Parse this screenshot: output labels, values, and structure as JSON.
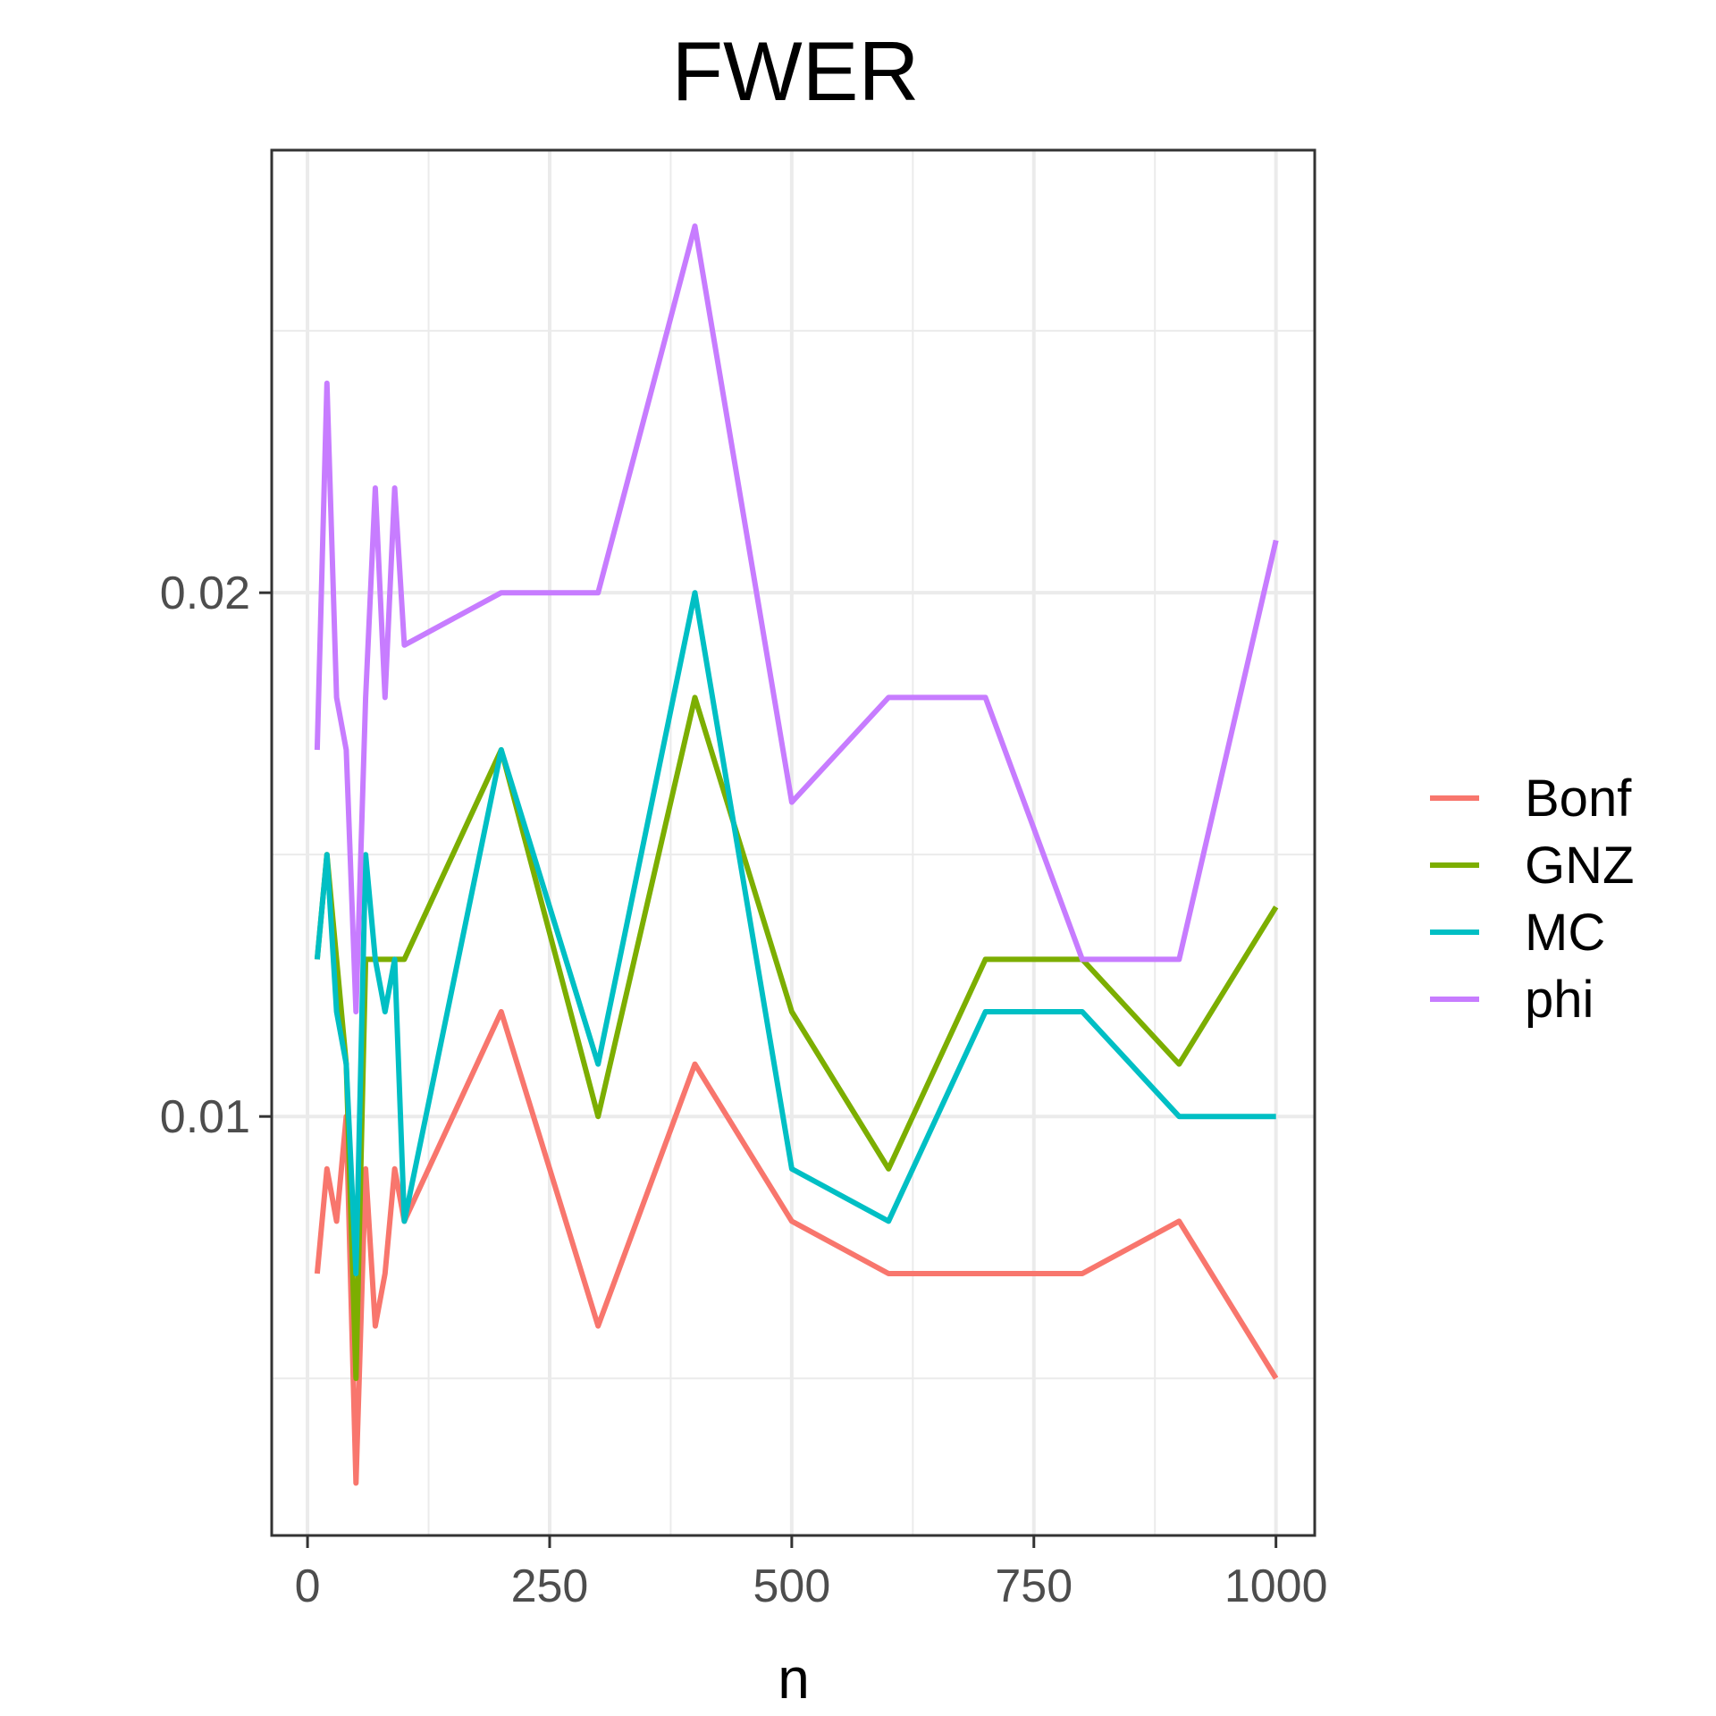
{
  "chart_data": {
    "type": "line",
    "title": "FWER",
    "xlabel": "n",
    "ylabel": "",
    "xlim": [
      -37,
      1040
    ],
    "ylim": [
      0.002,
      0.02845
    ],
    "x_ticks": [
      0,
      250,
      500,
      750,
      1000
    ],
    "y_ticks": [
      0.01,
      0.02
    ],
    "x_tick_labels": [
      "0",
      "250",
      "500",
      "750",
      "1000"
    ],
    "y_tick_labels": [
      "0.01",
      "0.02"
    ],
    "grid": true,
    "legend_position": "right",
    "x": [
      10,
      20,
      30,
      40,
      50,
      60,
      70,
      80,
      90,
      100,
      200,
      300,
      400,
      500,
      600,
      700,
      800,
      900,
      1000
    ],
    "series": [
      {
        "name": "Bonf",
        "color": "#F8766D",
        "values": [
          0.007,
          0.009,
          0.008,
          0.01,
          0.003,
          0.009,
          0.006,
          0.007,
          0.009,
          0.008,
          0.012,
          0.006,
          0.011,
          0.008,
          0.007,
          0.007,
          0.007,
          0.008,
          0.005
        ]
      },
      {
        "name": "GNZ",
        "color": "#7CAE00",
        "values": [
          0.013,
          0.015,
          0.013,
          0.011,
          0.005,
          0.013,
          0.013,
          0.013,
          0.013,
          0.013,
          0.017,
          0.01,
          0.018,
          0.012,
          0.009,
          0.013,
          0.013,
          0.011,
          0.014
        ]
      },
      {
        "name": "MC",
        "color": "#00BFC4",
        "values": [
          0.013,
          0.015,
          0.012,
          0.011,
          0.007,
          0.015,
          0.013,
          0.012,
          0.013,
          0.008,
          0.017,
          0.011,
          0.02,
          0.009,
          0.008,
          0.012,
          0.012,
          0.01,
          0.01
        ]
      },
      {
        "name": "phi",
        "color": "#C77CFF",
        "values": [
          0.017,
          0.024,
          0.018,
          0.017,
          0.012,
          0.018,
          0.022,
          0.018,
          0.022,
          0.019,
          0.02,
          0.02,
          0.027,
          0.016,
          0.018,
          0.018,
          0.013,
          0.013,
          0.021
        ]
      }
    ]
  }
}
